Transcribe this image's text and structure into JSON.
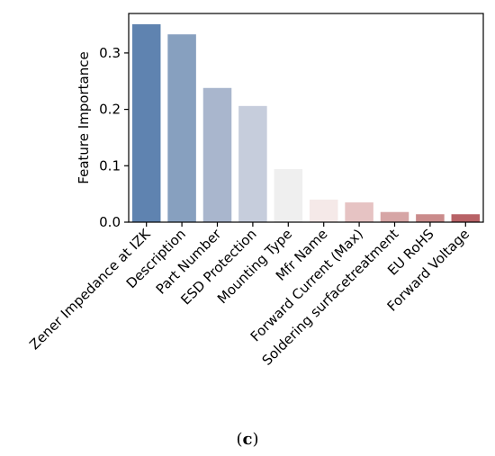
{
  "chart_data": {
    "type": "bar",
    "ylabel": "Feature Importance",
    "xlabel": "",
    "ylim": [
      0,
      0.37
    ],
    "yticks": [
      0.0,
      0.1,
      0.2,
      0.3
    ],
    "ytick_labels": [
      "0.0",
      "0.1",
      "0.2",
      "0.3"
    ],
    "grid": false,
    "categories": [
      "Zener Impedance at IZK",
      "Description",
      "Part Number",
      "ESD Protection",
      "Mounting Type",
      "Mfr Name",
      "Forward Current (Max)",
      "Soldering surfacetreatment",
      "EU RoHS",
      "Forward Voltage"
    ],
    "values": [
      0.351,
      0.333,
      0.238,
      0.206,
      0.094,
      0.04,
      0.035,
      0.018,
      0.014,
      0.014
    ],
    "colors": [
      "#5f83b0",
      "#87a0bf",
      "#a9b6cd",
      "#c6cddc",
      "#efefef",
      "#f5e9e8",
      "#e6c3c3",
      "#d6a5a5",
      "#ca8b8b",
      "#b86266"
    ]
  },
  "caption": {
    "open": "(",
    "letter": "c",
    "close": ")"
  }
}
